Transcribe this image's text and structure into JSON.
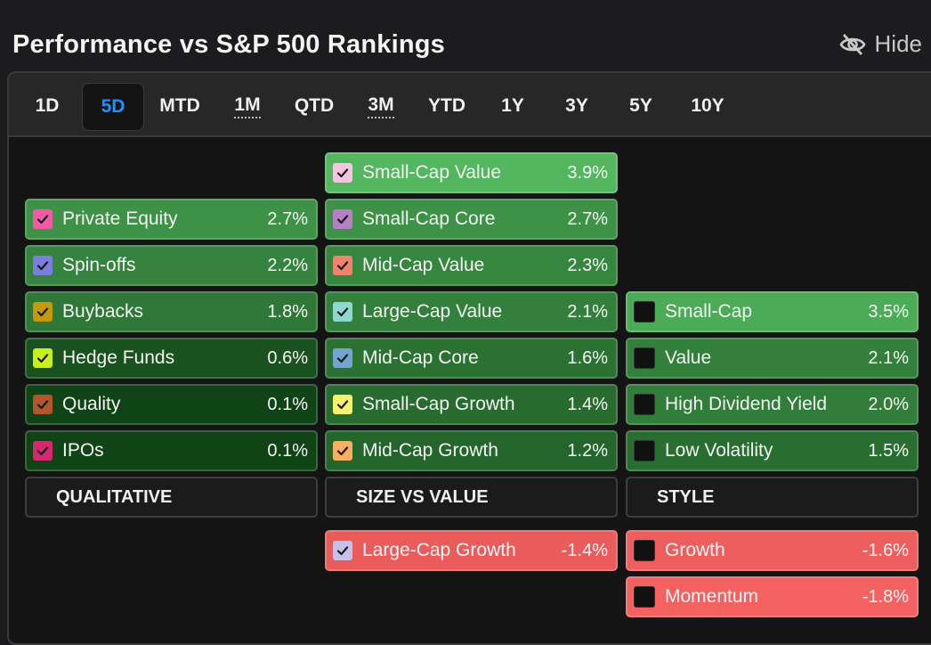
{
  "title": "Performance vs S&P 500 Rankings",
  "hide_label": "Hide",
  "tabs": [
    {
      "label": "1D",
      "active": false,
      "dotted": false
    },
    {
      "label": "5D",
      "active": true,
      "dotted": false
    },
    {
      "label": "MTD",
      "active": false,
      "dotted": false
    },
    {
      "label": "1M",
      "active": false,
      "dotted": true
    },
    {
      "label": "QTD",
      "active": false,
      "dotted": false
    },
    {
      "label": "3M",
      "active": false,
      "dotted": true
    },
    {
      "label": "YTD",
      "active": false,
      "dotted": false
    },
    {
      "label": "1Y",
      "active": false,
      "dotted": false
    },
    {
      "label": "3Y",
      "active": false,
      "dotted": false
    },
    {
      "label": "5Y",
      "active": false,
      "dotted": false
    },
    {
      "label": "10Y",
      "active": false,
      "dotted": false
    }
  ],
  "columns": [
    {
      "header": "QUALITATIVE",
      "positive": [
        {
          "label": "Private Equity",
          "value": "2.7%",
          "check_color": "#f25aa5",
          "checked": true
        },
        {
          "label": "Spin-offs",
          "value": "2.2%",
          "check_color": "#7a7ee0",
          "checked": true
        },
        {
          "label": "Buybacks",
          "value": "1.8%",
          "check_color": "#c49a0a",
          "checked": true
        },
        {
          "label": "Hedge Funds",
          "value": "0.6%",
          "check_color": "#c6f016",
          "checked": true
        },
        {
          "label": "Quality",
          "value": "0.1%",
          "check_color": "#b0582a",
          "checked": true
        },
        {
          "label": "IPOs",
          "value": "0.1%",
          "check_color": "#d6286e",
          "checked": true
        }
      ],
      "negative": []
    },
    {
      "header": "SIZE VS VALUE",
      "positive": [
        {
          "label": "Small-Cap Value",
          "value": "3.9%",
          "check_color": "#f6c6e0",
          "checked": true
        },
        {
          "label": "Small-Cap Core",
          "value": "2.7%",
          "check_color": "#b680c4",
          "checked": true
        },
        {
          "label": "Mid-Cap Value",
          "value": "2.3%",
          "check_color": "#f08270",
          "checked": true
        },
        {
          "label": "Large-Cap Value",
          "value": "2.1%",
          "check_color": "#8ed8d0",
          "checked": true
        },
        {
          "label": "Mid-Cap Core",
          "value": "1.6%",
          "check_color": "#72a6d0",
          "checked": true
        },
        {
          "label": "Small-Cap Growth",
          "value": "1.4%",
          "check_color": "#f6f270",
          "checked": true
        },
        {
          "label": "Mid-Cap Growth",
          "value": "1.2%",
          "check_color": "#f8b060",
          "checked": true
        }
      ],
      "negative": [
        {
          "label": "Large-Cap Growth",
          "value": "-1.4%",
          "check_color": "#c8c0e8",
          "checked": true
        }
      ]
    },
    {
      "header": "STYLE",
      "positive": [
        {
          "label": "Small-Cap",
          "value": "3.5%",
          "check_color": "",
          "checked": false
        },
        {
          "label": "Value",
          "value": "2.1%",
          "check_color": "",
          "checked": false
        },
        {
          "label": "High Dividend Yield",
          "value": "2.0%",
          "check_color": "",
          "checked": false
        },
        {
          "label": "Low Volatility",
          "value": "1.5%",
          "check_color": "",
          "checked": false
        }
      ],
      "negative": [
        {
          "label": "Growth",
          "value": "-1.6%",
          "check_color": "",
          "checked": false
        },
        {
          "label": "Momentum",
          "value": "-1.8%",
          "check_color": "",
          "checked": false
        }
      ]
    }
  ]
}
